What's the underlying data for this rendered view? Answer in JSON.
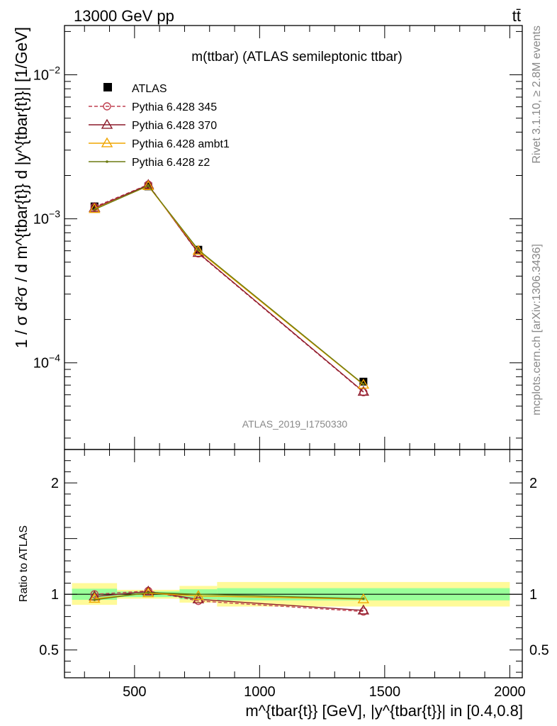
{
  "header": {
    "energy_label": "13000 GeV pp",
    "process_label": "tt̄"
  },
  "side_labels": {
    "rivet": "Rivet 3.1.10, ≥ 2.8M events",
    "mcplots": "mcplots.cern.ch [arXiv:1306.3436]"
  },
  "chart_data": [
    {
      "type": "line",
      "title": "m(ttbar) (ATLAS semileptonic ttbar)",
      "watermark": "ATLAS_2019_I1750330",
      "xlabel": "m^{tbar{t}} [GeV], |y^{tbar{t}}| in [0.4,0.8]",
      "ylabel": "1 / σ d²σ / d m^{tbar{t}} d |y^{tbar{t}}| [1/GeV]",
      "y_scale": "log",
      "xlim": [
        220,
        2050
      ],
      "ylim": [
        2.5e-05,
        0.022
      ],
      "y_ticks": [
        {
          "value": 0.01,
          "mantissa": "10",
          "exponent": "−2"
        },
        {
          "value": 0.001,
          "mantissa": "10",
          "exponent": "−3"
        },
        {
          "value": 0.0001,
          "mantissa": "10",
          "exponent": "−4"
        }
      ],
      "legend_position": "top-left",
      "data": {
        "name": "ATLAS",
        "points": [
          {
            "x": 340,
            "x_low": 250,
            "x_high": 430,
            "y": 0.00122
          },
          {
            "x": 555,
            "x_low": 430,
            "x_high": 680,
            "y": 0.00168
          },
          {
            "x": 755,
            "x_low": 680,
            "x_high": 830,
            "y": 0.00061
          },
          {
            "x": 1415,
            "x_low": 830,
            "x_high": 2000,
            "y": 7.4e-05
          }
        ]
      },
      "series": [
        {
          "name": "Pythia 6.428 345",
          "color": "#c04050",
          "style": "dashed",
          "marker": "circle",
          "x": [
            340,
            555,
            755,
            1415
          ],
          "y": [
            0.00121,
            0.00173,
            0.000575,
            6.25e-05
          ]
        },
        {
          "name": "Pythia 6.428 370",
          "color": "#8b1a2a",
          "style": "solid",
          "marker": "triangle",
          "x": [
            340,
            555,
            755,
            1415
          ],
          "y": [
            0.00119,
            0.00172,
            0.00058,
            6.3e-05
          ]
        },
        {
          "name": "Pythia 6.428 ambt1",
          "color": "#f0a500",
          "style": "solid",
          "marker": "triangle",
          "x": [
            340,
            555,
            755,
            1415
          ],
          "y": [
            0.00117,
            0.00169,
            0.0006,
            7.05e-05
          ]
        },
        {
          "name": "Pythia 6.428 z2",
          "color": "#6b7a10",
          "style": "solid",
          "marker": "dot",
          "x": [
            340,
            555,
            755,
            1415
          ],
          "y": [
            0.00116,
            0.0017,
            0.00061,
            7.1e-05
          ]
        }
      ]
    },
    {
      "type": "line",
      "ylabel": "Ratio to ATLAS",
      "y_scale": "linear",
      "xlim": [
        220,
        2050
      ],
      "ylim": [
        0.25,
        2.3
      ],
      "x_ticks": [
        500,
        1000,
        1500,
        2000
      ],
      "y_ticks": [
        {
          "value": 0.5,
          "label": "0.5"
        },
        {
          "value": 1,
          "label": "1"
        },
        {
          "value": 2,
          "label": "2"
        }
      ],
      "bands": [
        {
          "x_low": 250,
          "x_high": 430,
          "inner": [
            0.95,
            1.05
          ],
          "outer": [
            0.905,
            1.1
          ]
        },
        {
          "x_low": 430,
          "x_high": 680,
          "inner": [
            0.975,
            1.025
          ],
          "outer": [
            0.96,
            1.04
          ]
        },
        {
          "x_low": 680,
          "x_high": 830,
          "inner": [
            0.955,
            1.045
          ],
          "outer": [
            0.925,
            1.075
          ]
        },
        {
          "x_low": 830,
          "x_high": 2000,
          "inner": [
            0.945,
            1.055
          ],
          "outer": [
            0.89,
            1.11
          ]
        }
      ],
      "series": [
        {
          "name": "Pythia 6.428 345",
          "color": "#c04050",
          "style": "dashed",
          "marker": "circle",
          "x": [
            340,
            555,
            755,
            1415
          ],
          "y": [
            1.0,
            1.03,
            0.94,
            0.845
          ]
        },
        {
          "name": "Pythia 6.428 370",
          "color": "#8b1a2a",
          "style": "solid",
          "marker": "triangle",
          "x": [
            340,
            555,
            755,
            1415
          ],
          "y": [
            0.98,
            1.025,
            0.955,
            0.855
          ]
        },
        {
          "name": "Pythia 6.428 ambt1",
          "color": "#f0a500",
          "style": "solid",
          "marker": "triangle",
          "x": [
            340,
            555,
            755,
            1415
          ],
          "y": [
            0.96,
            1.01,
            0.985,
            0.955
          ]
        },
        {
          "name": "Pythia 6.428 z2",
          "color": "#6b7a10",
          "style": "solid",
          "marker": "dot",
          "x": [
            340,
            555,
            755,
            1415
          ],
          "y": [
            0.95,
            1.015,
            1.0,
            0.96
          ]
        }
      ]
    }
  ]
}
